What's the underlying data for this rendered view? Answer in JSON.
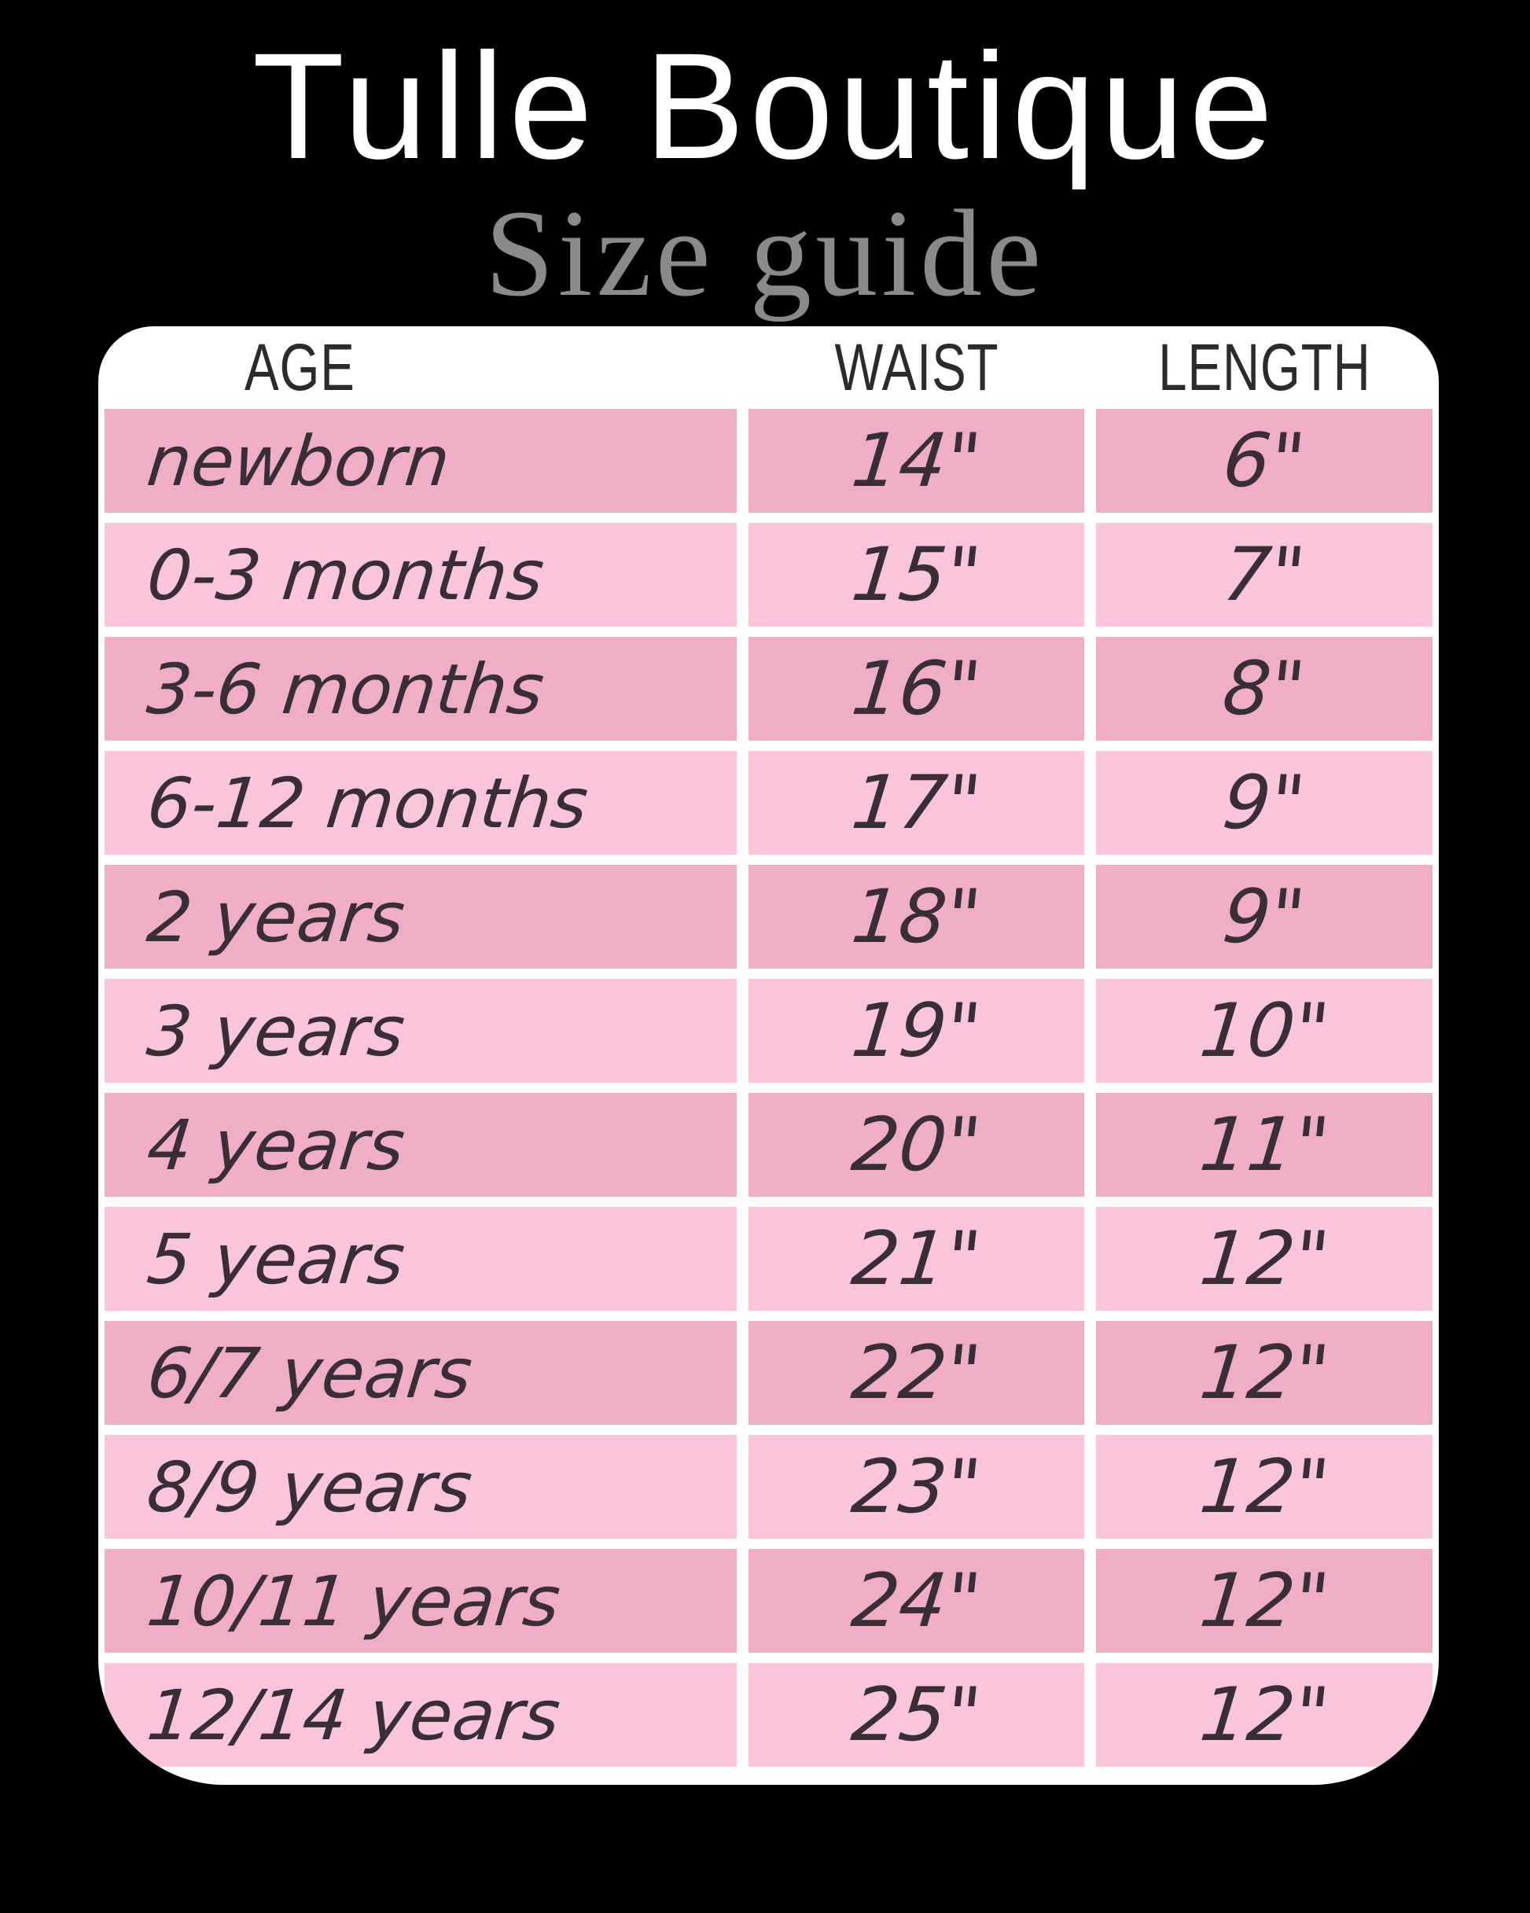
{
  "title": "Tulle Boutique",
  "subtitle": "Size guide",
  "chart_data": {
    "type": "table",
    "title": "Tulle Boutique Size guide",
    "columns": [
      "AGE",
      "WAIST",
      "LENGTH"
    ],
    "rows": [
      {
        "age": "newborn",
        "waist": "14\"",
        "length": "6\""
      },
      {
        "age": "0-3 months",
        "waist": "15\"",
        "length": "7\""
      },
      {
        "age": "3-6 months",
        "waist": "16\"",
        "length": "8\""
      },
      {
        "age": "6-12 months",
        "waist": "17\"",
        "length": "9\""
      },
      {
        "age": "2 years",
        "waist": "18\"",
        "length": "9\""
      },
      {
        "age": "3 years",
        "waist": "19\"",
        "length": "10\""
      },
      {
        "age": "4 years",
        "waist": "20\"",
        "length": "11\""
      },
      {
        "age": "5 years",
        "waist": "21\"",
        "length": "12\""
      },
      {
        "age": "6/7 years",
        "waist": "22\"",
        "length": "12\""
      },
      {
        "age": "8/9 years",
        "waist": "23\"",
        "length": "12\""
      },
      {
        "age": "10/11 years",
        "waist": "24\"",
        "length": "12\""
      },
      {
        "age": "12/14 years",
        "waist": "25\"",
        "length": "12\""
      }
    ]
  },
  "colors": {
    "background": "#000000",
    "table_bg": "#ffffff",
    "row_light": "#fac5da",
    "row_dark": "#efadc6",
    "ink": "#392e35",
    "header_text": "#2b2b2b",
    "subtitle_color": "#8a8a8a",
    "title_color": "#ffffff"
  }
}
